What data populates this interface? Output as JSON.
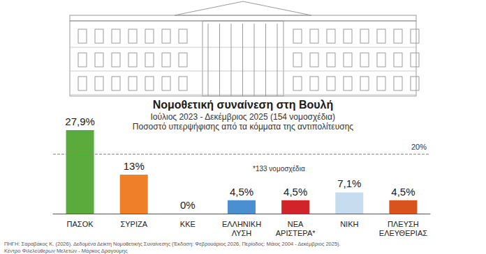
{
  "chart_data": {
    "type": "bar",
    "title": "Νομοθετική συναίνεση στη Βουλή",
    "subtitle": [
      "Ιούλιος 2023 - Δεκέμβριος 2025 (154 νομοσχέδια)",
      "Ποσοστό υπερψήφισης από τα κόμματα της αντιπολίτευσης"
    ],
    "categories": [
      "ΠΑΣΟΚ",
      "ΣΥΡΙΖΑ",
      "ΚΚΕ",
      "ΕΛΛΗΝΙΚΗ ΛΥΣΗ",
      "ΝΕΑ ΑΡΙΣΤΕΡΑ*",
      "ΝΙΚΗ",
      "ΠΛΕΥΣΗ ΕΛΕΥΘΕΡΙΑΣ"
    ],
    "values": [
      27.9,
      13,
      0,
      4.5,
      4.5,
      7.1,
      4.5
    ],
    "value_labels": [
      "27,9%",
      "13%",
      "0%",
      "4,5%",
      "4,5%",
      "7,1%",
      "4,5%"
    ],
    "colors": [
      "#5aab3c",
      "#f07f2a",
      "#c0392b",
      "#4a8fd0",
      "#d2232a",
      "#c8dcef",
      "#d9531e"
    ],
    "ylim": [
      0,
      30
    ],
    "yticks": [
      0,
      30
    ],
    "tick_labels": "x",
    "grid": false,
    "data_labels": true,
    "reference_line": {
      "value": 20,
      "label": "20%"
    },
    "annotations": [
      "*133 νομοσχέδια"
    ],
    "source": [
      "ΠΗΓΗ: Σαραβάκος Κ. (2026). Δεδομένα Δείκτη Νομοθετικής Συναίνεσης (Έκδοση: Φεβρουάριος 2026, Περίοδος: Μάιος 2004 - Δεκέμβριος 2025).",
      "Κέντρο Φιλελεύθερων Μελετών - Μάρκος Δραγούμης"
    ]
  }
}
